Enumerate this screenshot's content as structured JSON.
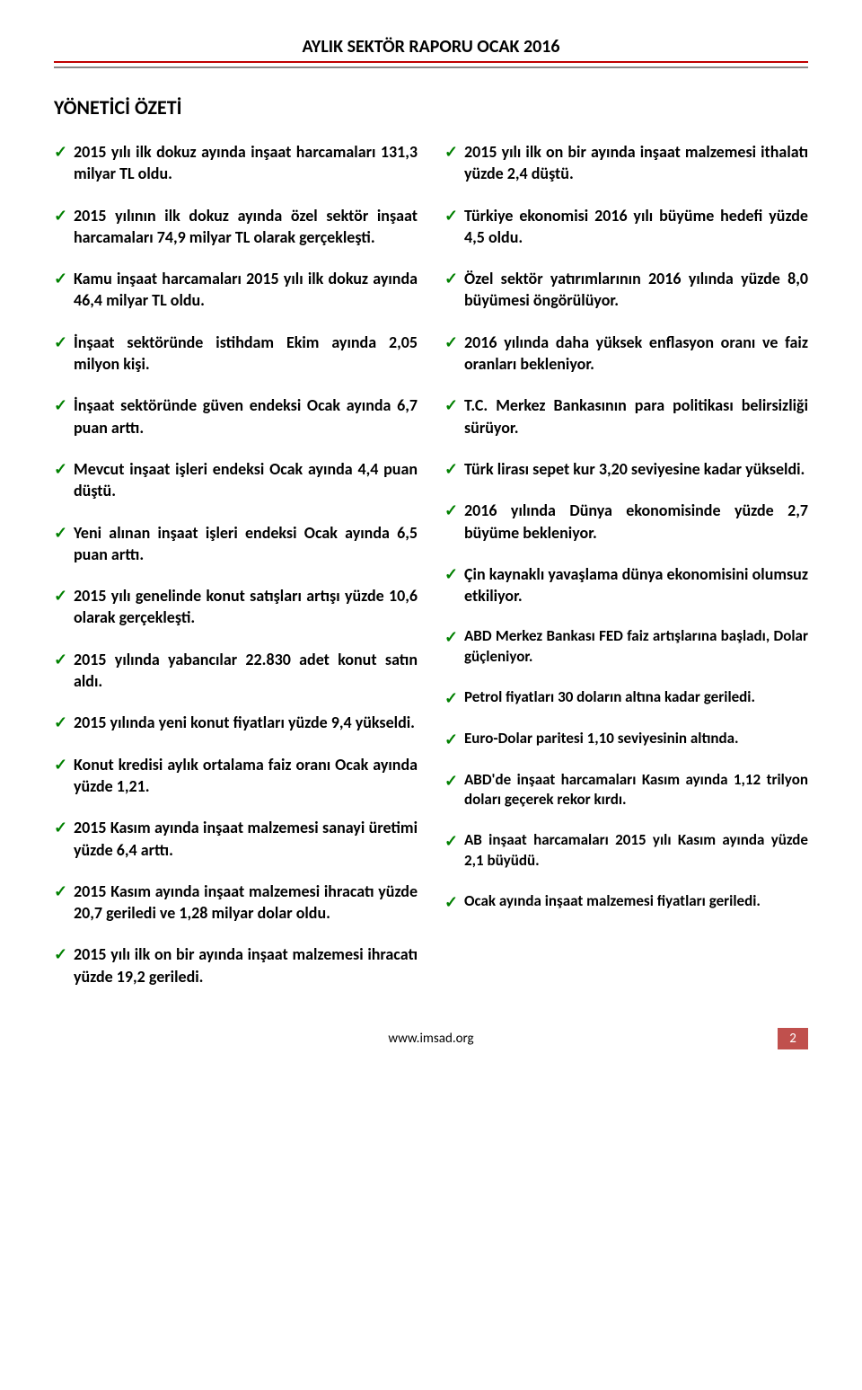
{
  "header": {
    "title": "AYLIK SEKTÖR RAPORU OCAK 2016"
  },
  "section_title": "YÖNETİCİ ÖZETİ",
  "left_column": [
    {
      "text": "2015 yılı ilk dokuz ayında inşaat harcamaları 131,3 milyar TL oldu.",
      "justify": true
    },
    {
      "text": "2015 yılının ilk dokuz ayında özel sektör inşaat harcamaları 74,9 milyar TL olarak gerçekleşti.",
      "justify": true
    },
    {
      "text": "Kamu inşaat harcamaları 2015 yılı ilk dokuz ayında 46,4 milyar TL oldu.",
      "justify": true
    },
    {
      "text": "İnşaat sektöründe istihdam Ekim ayında 2,05 milyon kişi.",
      "justify": true
    },
    {
      "text": "İnşaat sektöründe güven endeksi Ocak ayında 6,7 puan arttı.",
      "justify": true
    },
    {
      "text": "Mevcut inşaat işleri endeksi Ocak ayında 4,4 puan düştü.",
      "justify": true
    },
    {
      "text": "Yeni alınan inşaat işleri endeksi Ocak ayında 6,5 puan arttı.",
      "justify": true
    },
    {
      "text": "2015 yılı genelinde konut satışları artışı yüzde 10,6 olarak gerçekleşti.",
      "justify": true
    },
    {
      "text": "2015 yılında yabancılar 22.830 adet konut satın aldı.",
      "justify": true
    },
    {
      "text": "2015 yılında yeni konut fiyatları yüzde 9,4 yükseldi.",
      "justify": true
    },
    {
      "text": "Konut kredisi aylık ortalama faiz oranı Ocak ayında yüzde 1,21.",
      "justify": true
    },
    {
      "text": "2015 Kasım ayında inşaat malzemesi sanayi üretimi yüzde 6,4 arttı.",
      "justify": true
    },
    {
      "text": "2015 Kasım ayında inşaat malzemesi ihracatı yüzde 20,7 geriledi ve 1,28 milyar dolar oldu.",
      "justify": true
    },
    {
      "text": "2015 yılı ilk on bir ayında inşaat malzemesi ihracatı yüzde 19,2 geriledi.",
      "justify": true
    }
  ],
  "right_column": [
    {
      "text": "2015 yılı ilk on bir ayında inşaat malzemesi ithalatı yüzde 2,4 düştü.",
      "justify": true
    },
    {
      "text": "Türkiye ekonomisi 2016 yılı büyüme hedefi yüzde 4,5 oldu.",
      "justify": true
    },
    {
      "text": "Özel sektör yatırımlarının 2016 yılında yüzde 8,0 büyümesi öngörülüyor.",
      "justify": true
    },
    {
      "text": "2016 yılında daha yüksek enflasyon oranı ve faiz oranları bekleniyor.",
      "justify": true
    },
    {
      "text": "T.C. Merkez Bankasının para politikası belirsizliği sürüyor.",
      "justify": true
    },
    {
      "text": "Türk lirası sepet kur 3,20 seviyesine kadar yükseldi.",
      "justify": true
    },
    {
      "text": "2016 yılında Dünya ekonomisinde yüzde 2,7 büyüme bekleniyor.",
      "justify": true
    },
    {
      "text": "Çin kaynaklı yavaşlama dünya ekonomisini olumsuz etkiliyor.",
      "justify": true
    },
    {
      "text": "ABD Merkez Bankası FED faiz artışlarına başladı, Dolar güçleniyor.",
      "justify": true,
      "small": true
    },
    {
      "text": "Petrol fiyatları 30 doların altına kadar geriledi.",
      "justify": true,
      "small": true
    },
    {
      "text": "Euro-Dolar paritesi 1,10 seviyesinin altında.",
      "justify": true,
      "small": true
    },
    {
      "text": "ABD'de inşaat harcamaları Kasım ayında 1,12 trilyon doları geçerek rekor kırdı.",
      "justify": true,
      "small": true
    },
    {
      "text": "AB inşaat harcamaları 2015 yılı Kasım ayında yüzde 2,1 büyüdü.",
      "justify": true,
      "small": true
    },
    {
      "text": "Ocak ayında inşaat malzemesi fiyatları geriledi.",
      "justify": true,
      "small": true
    }
  ],
  "footer": {
    "url": "www.imsad.org",
    "page_number": "2"
  },
  "colors": {
    "check": "#008000",
    "header_rule": "#c00000",
    "page_box": "#c0504d"
  }
}
